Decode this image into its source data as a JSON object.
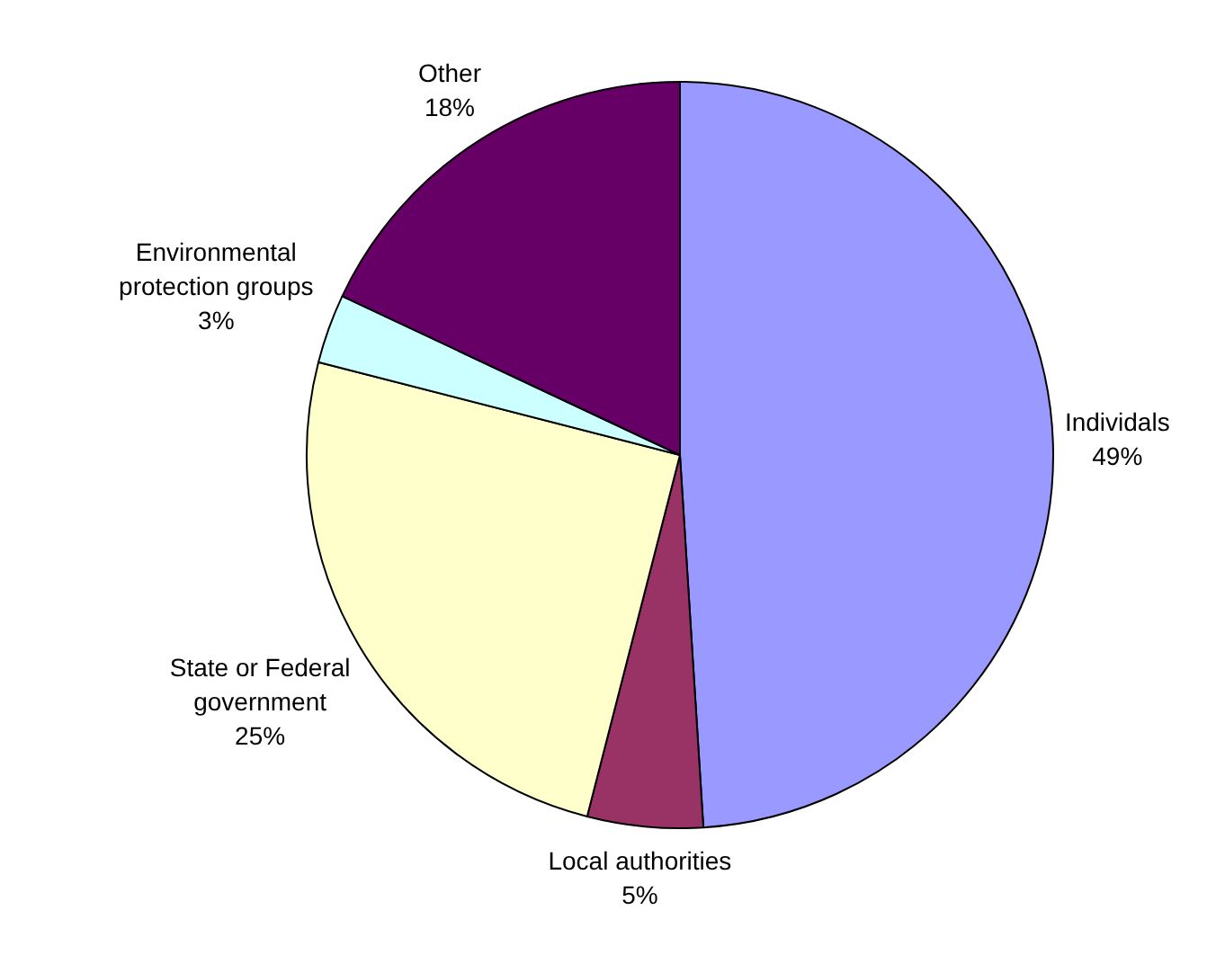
{
  "chart_data": {
    "type": "pie",
    "categories": [
      "Individals",
      "Local authorities",
      "State or Federal government",
      "Environmental protection groups",
      "Other"
    ],
    "values": [
      49,
      5,
      25,
      3,
      18
    ],
    "value_labels": [
      "49%",
      "5%",
      "25%",
      "3%",
      "18%"
    ],
    "colors": [
      "#9999ff",
      "#993366",
      "#ffffcc",
      "#ccffff",
      "#660066"
    ],
    "legend": false
  }
}
